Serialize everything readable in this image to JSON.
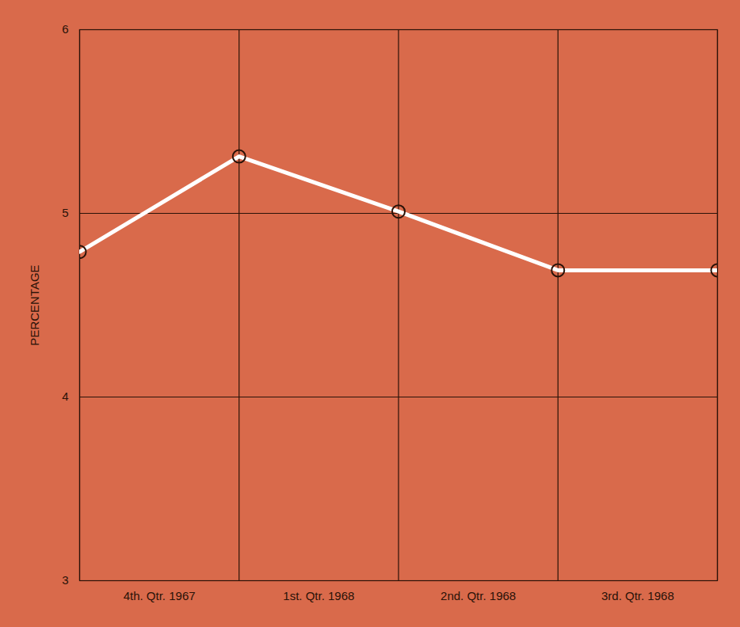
{
  "chart_data": {
    "type": "line",
    "x": [
      0,
      1,
      2,
      3,
      4
    ],
    "values": [
      4.79,
      5.31,
      5.01,
      4.69,
      4.69
    ],
    "xlim": [
      0,
      4
    ],
    "xticks": [
      {
        "value": 0.5,
        "label": "4th. Qtr. 1967"
      },
      {
        "value": 1.5,
        "label": "1st. Qtr. 1968"
      },
      {
        "value": 2.5,
        "label": "2nd. Qtr. 1968"
      },
      {
        "value": 3.5,
        "label": "3rd. Qtr. 1968"
      }
    ],
    "ylabel": "PERCENTAGE",
    "ylim": [
      3,
      6
    ],
    "yticks": [
      3,
      4,
      5,
      6
    ],
    "grid": true,
    "color": "#ffffff",
    "marker": "circle"
  }
}
